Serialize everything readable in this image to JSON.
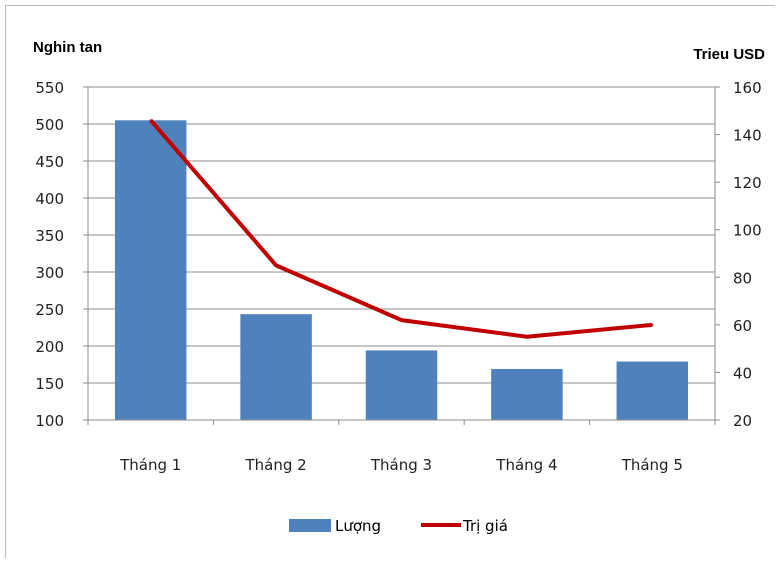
{
  "chart_data": {
    "type": "bar",
    "title": "",
    "categories": [
      "Tháng 1",
      "Tháng 2",
      "Tháng 3",
      "Tháng 4",
      "Tháng 5"
    ],
    "series": [
      {
        "name": "Lượng",
        "type": "bar",
        "axis": "left",
        "color": "#4f81bd",
        "values": [
          505,
          243,
          194,
          169,
          179
        ]
      },
      {
        "name": "Trị giá",
        "type": "line",
        "axis": "right",
        "color": "#c00000",
        "values": [
          146,
          85,
          62,
          55,
          60
        ]
      }
    ],
    "y_left": {
      "label": "Nghin tan",
      "min": 100,
      "max": 550,
      "step": 50
    },
    "y_right": {
      "label": "Trieu USD",
      "min": 20,
      "max": 160,
      "step": 20
    },
    "grid": true,
    "legend": "bottom-center"
  }
}
